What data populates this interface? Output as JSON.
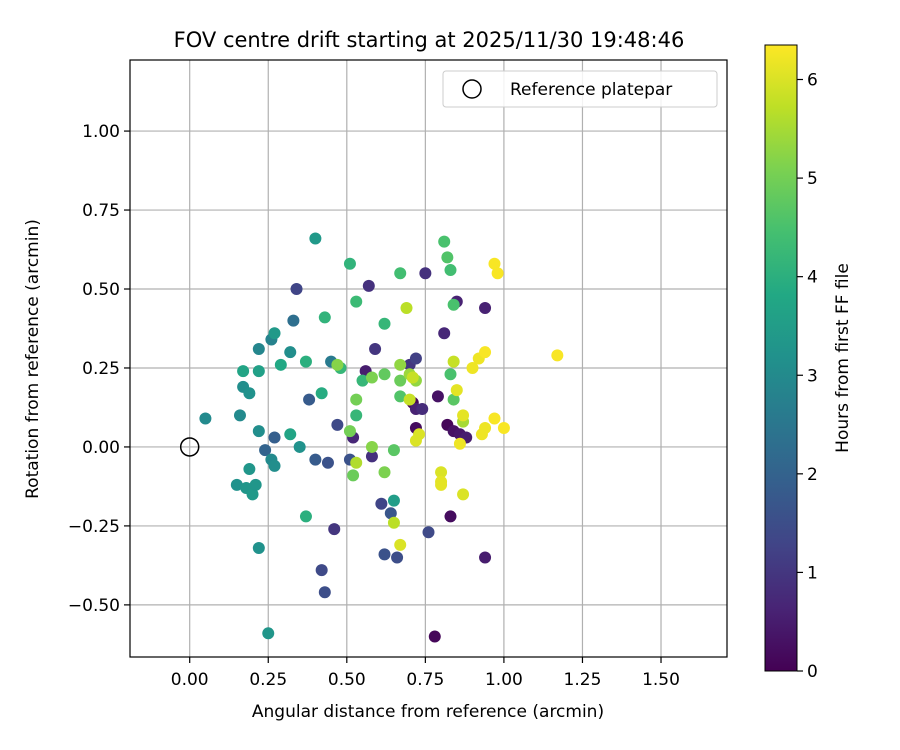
{
  "chart_data": {
    "type": "scatter",
    "title": "FOV centre drift starting at 2025/11/30 19:48:46",
    "xlabel": "Angular distance from reference (arcmin)",
    "ylabel": "Rotation from reference (arcmin)",
    "xlim": [
      -0.19,
      1.71
    ],
    "ylim": [
      -0.665,
      1.225
    ],
    "xticks": [
      0.0,
      0.25,
      0.5,
      0.75,
      1.0,
      1.25,
      1.5
    ],
    "xtick_labels": [
      "0.00",
      "0.25",
      "0.50",
      "0.75",
      "1.00",
      "1.25",
      "1.50"
    ],
    "yticks": [
      -0.5,
      -0.25,
      0.0,
      0.25,
      0.5,
      0.75,
      1.0
    ],
    "ytick_labels": [
      "−0.50",
      "−0.25",
      "0.00",
      "0.25",
      "0.50",
      "0.75",
      "1.00"
    ],
    "grid": true,
    "legend": {
      "placement": "top-right",
      "entries": [
        "Reference platepar"
      ]
    },
    "reference_point": {
      "x": 0.0,
      "y": 0.0,
      "label": "Reference platepar"
    },
    "colorbar": {
      "label": "Hours from first FF file",
      "colormap": "viridis",
      "range": [
        0,
        6.35
      ],
      "ticks": [
        0,
        1,
        2,
        3,
        4,
        5,
        6
      ],
      "tick_labels": [
        "0",
        "1",
        "2",
        "3",
        "4",
        "5",
        "6"
      ]
    },
    "points": [
      {
        "x": 0.78,
        "y": -0.6,
        "h": 0.1
      },
      {
        "x": 0.83,
        "y": -0.22,
        "h": 0.2
      },
      {
        "x": 0.94,
        "y": -0.35,
        "h": 0.5
      },
      {
        "x": 0.71,
        "y": 0.14,
        "h": 0.1
      },
      {
        "x": 0.72,
        "y": 0.06,
        "h": 0.2
      },
      {
        "x": 0.82,
        "y": 0.07,
        "h": 0.1
      },
      {
        "x": 0.84,
        "y": 0.05,
        "h": 0.3
      },
      {
        "x": 0.86,
        "y": 0.04,
        "h": 0.4
      },
      {
        "x": 0.88,
        "y": 0.03,
        "h": 0.5
      },
      {
        "x": 0.79,
        "y": 0.16,
        "h": 0.3
      },
      {
        "x": 0.81,
        "y": 0.36,
        "h": 0.7
      },
      {
        "x": 0.85,
        "y": 0.46,
        "h": 0.6
      },
      {
        "x": 0.94,
        "y": 0.44,
        "h": 0.6
      },
      {
        "x": 0.75,
        "y": 0.55,
        "h": 0.9
      },
      {
        "x": 0.72,
        "y": 0.12,
        "h": 0.6
      },
      {
        "x": 0.74,
        "y": 0.12,
        "h": 0.8
      },
      {
        "x": 0.7,
        "y": 0.26,
        "h": 1.0
      },
      {
        "x": 0.72,
        "y": 0.28,
        "h": 1.2
      },
      {
        "x": 0.59,
        "y": 0.31,
        "h": 1.0
      },
      {
        "x": 0.56,
        "y": 0.24,
        "h": 0.5
      },
      {
        "x": 0.57,
        "y": 0.51,
        "h": 0.9
      },
      {
        "x": 0.52,
        "y": 0.03,
        "h": 0.7
      },
      {
        "x": 0.58,
        "y": -0.03,
        "h": 0.9
      },
      {
        "x": 0.46,
        "y": -0.26,
        "h": 1.0
      },
      {
        "x": 0.61,
        "y": -0.18,
        "h": 1.3
      },
      {
        "x": 0.76,
        "y": -0.27,
        "h": 1.4
      },
      {
        "x": 0.34,
        "y": 0.5,
        "h": 1.3
      },
      {
        "x": 0.42,
        "y": -0.39,
        "h": 1.4
      },
      {
        "x": 0.43,
        "y": -0.46,
        "h": 1.5
      },
      {
        "x": 0.62,
        "y": -0.34,
        "h": 1.6
      },
      {
        "x": 0.66,
        "y": -0.35,
        "h": 1.5
      },
      {
        "x": 0.64,
        "y": -0.21,
        "h": 1.7
      },
      {
        "x": 0.47,
        "y": 0.07,
        "h": 1.4
      },
      {
        "x": 0.51,
        "y": -0.04,
        "h": 1.6
      },
      {
        "x": 0.4,
        "y": -0.04,
        "h": 1.8
      },
      {
        "x": 0.44,
        "y": -0.05,
        "h": 1.6
      },
      {
        "x": 0.38,
        "y": 0.15,
        "h": 1.8
      },
      {
        "x": 0.27,
        "y": 0.03,
        "h": 1.9
      },
      {
        "x": 0.24,
        "y": -0.01,
        "h": 2.0
      },
      {
        "x": 0.33,
        "y": 0.4,
        "h": 2.3
      },
      {
        "x": 0.45,
        "y": 0.27,
        "h": 2.6
      },
      {
        "x": 0.26,
        "y": 0.34,
        "h": 2.8
      },
      {
        "x": 0.22,
        "y": 0.31,
        "h": 2.9
      },
      {
        "x": 0.05,
        "y": 0.09,
        "h": 3.0
      },
      {
        "x": 0.16,
        "y": 0.1,
        "h": 3.0
      },
      {
        "x": 0.17,
        "y": 0.19,
        "h": 3.1
      },
      {
        "x": 0.19,
        "y": 0.17,
        "h": 3.2
      },
      {
        "x": 0.22,
        "y": 0.05,
        "h": 3.1
      },
      {
        "x": 0.26,
        "y": -0.04,
        "h": 3.0
      },
      {
        "x": 0.27,
        "y": -0.06,
        "h": 3.1
      },
      {
        "x": 0.19,
        "y": -0.07,
        "h": 3.3
      },
      {
        "x": 0.15,
        "y": -0.12,
        "h": 3.2
      },
      {
        "x": 0.18,
        "y": -0.13,
        "h": 3.3
      },
      {
        "x": 0.2,
        "y": -0.15,
        "h": 3.4
      },
      {
        "x": 0.21,
        "y": -0.12,
        "h": 3.3
      },
      {
        "x": 0.22,
        "y": -0.32,
        "h": 3.2
      },
      {
        "x": 0.25,
        "y": -0.59,
        "h": 3.3
      },
      {
        "x": 0.35,
        "y": 0.0,
        "h": 3.2
      },
      {
        "x": 0.32,
        "y": 0.3,
        "h": 3.1
      },
      {
        "x": 0.27,
        "y": 0.36,
        "h": 3.4
      },
      {
        "x": 0.22,
        "y": 0.24,
        "h": 3.6
      },
      {
        "x": 0.17,
        "y": 0.24,
        "h": 3.7
      },
      {
        "x": 0.29,
        "y": 0.26,
        "h": 3.8
      },
      {
        "x": 0.32,
        "y": 0.04,
        "h": 3.7
      },
      {
        "x": 0.65,
        "y": -0.17,
        "h": 3.5
      },
      {
        "x": 0.4,
        "y": 0.66,
        "h": 3.4
      },
      {
        "x": 0.37,
        "y": -0.22,
        "h": 4.0
      },
      {
        "x": 0.42,
        "y": 0.17,
        "h": 3.9
      },
      {
        "x": 0.43,
        "y": 0.41,
        "h": 4.1
      },
      {
        "x": 0.37,
        "y": 0.27,
        "h": 4.0
      },
      {
        "x": 0.48,
        "y": 0.25,
        "h": 4.2
      },
      {
        "x": 0.51,
        "y": 0.58,
        "h": 4.1
      },
      {
        "x": 0.53,
        "y": 0.1,
        "h": 4.2
      },
      {
        "x": 0.53,
        "y": 0.46,
        "h": 4.3
      },
      {
        "x": 0.55,
        "y": 0.21,
        "h": 4.2
      },
      {
        "x": 0.62,
        "y": 0.39,
        "h": 4.2
      },
      {
        "x": 0.67,
        "y": 0.55,
        "h": 4.4
      },
      {
        "x": 0.81,
        "y": 0.65,
        "h": 4.5
      },
      {
        "x": 0.82,
        "y": 0.6,
        "h": 4.6
      },
      {
        "x": 0.83,
        "y": 0.56,
        "h": 4.4
      },
      {
        "x": 0.84,
        "y": 0.45,
        "h": 4.5
      },
      {
        "x": 0.84,
        "y": 0.15,
        "h": 4.7
      },
      {
        "x": 0.83,
        "y": 0.23,
        "h": 4.5
      },
      {
        "x": 0.67,
        "y": 0.16,
        "h": 4.6
      },
      {
        "x": 0.65,
        "y": -0.01,
        "h": 4.7
      },
      {
        "x": 0.62,
        "y": 0.23,
        "h": 4.8
      },
      {
        "x": 0.67,
        "y": 0.21,
        "h": 4.9
      },
      {
        "x": 0.53,
        "y": 0.15,
        "h": 5.0
      },
      {
        "x": 0.51,
        "y": 0.05,
        "h": 5.0
      },
      {
        "x": 0.52,
        "y": -0.09,
        "h": 4.9
      },
      {
        "x": 0.58,
        "y": 0.22,
        "h": 5.1
      },
      {
        "x": 0.58,
        "y": 0.0,
        "h": 5.2
      },
      {
        "x": 0.62,
        "y": -0.08,
        "h": 5.1
      },
      {
        "x": 0.47,
        "y": 0.26,
        "h": 5.2
      },
      {
        "x": 0.67,
        "y": 0.26,
        "h": 5.3
      },
      {
        "x": 0.7,
        "y": 0.23,
        "h": 5.4
      },
      {
        "x": 0.72,
        "y": 0.21,
        "h": 5.3
      },
      {
        "x": 0.53,
        "y": -0.05,
        "h": 5.6
      },
      {
        "x": 0.65,
        "y": -0.24,
        "h": 5.7
      },
      {
        "x": 0.87,
        "y": 0.08,
        "h": 5.5
      },
      {
        "x": 0.69,
        "y": 0.44,
        "h": 5.7
      },
      {
        "x": 0.7,
        "y": 0.15,
        "h": 5.8
      },
      {
        "x": 0.71,
        "y": 0.22,
        "h": 5.8
      },
      {
        "x": 0.84,
        "y": 0.27,
        "h": 5.8
      },
      {
        "x": 0.87,
        "y": -0.15,
        "h": 6.0
      },
      {
        "x": 0.72,
        "y": 0.02,
        "h": 6.0
      },
      {
        "x": 0.73,
        "y": 0.04,
        "h": 6.0
      },
      {
        "x": 0.8,
        "y": -0.08,
        "h": 6.0
      },
      {
        "x": 0.8,
        "y": -0.11,
        "h": 6.1
      },
      {
        "x": 0.8,
        "y": -0.12,
        "h": 6.1
      },
      {
        "x": 0.67,
        "y": -0.31,
        "h": 6.0
      },
      {
        "x": 0.85,
        "y": 0.18,
        "h": 6.1
      },
      {
        "x": 0.87,
        "y": 0.1,
        "h": 6.1
      },
      {
        "x": 0.86,
        "y": 0.01,
        "h": 6.2
      },
      {
        "x": 0.9,
        "y": 0.25,
        "h": 6.2
      },
      {
        "x": 0.92,
        "y": 0.28,
        "h": 6.2
      },
      {
        "x": 0.94,
        "y": 0.3,
        "h": 6.3
      },
      {
        "x": 0.93,
        "y": 0.04,
        "h": 6.2
      },
      {
        "x": 0.94,
        "y": 0.06,
        "h": 6.2
      },
      {
        "x": 0.97,
        "y": 0.09,
        "h": 6.3
      },
      {
        "x": 1.0,
        "y": 0.06,
        "h": 6.3
      },
      {
        "x": 0.97,
        "y": 0.58,
        "h": 6.3
      },
      {
        "x": 0.98,
        "y": 0.55,
        "h": 6.3
      },
      {
        "x": 1.17,
        "y": 0.29,
        "h": 6.3
      }
    ]
  }
}
